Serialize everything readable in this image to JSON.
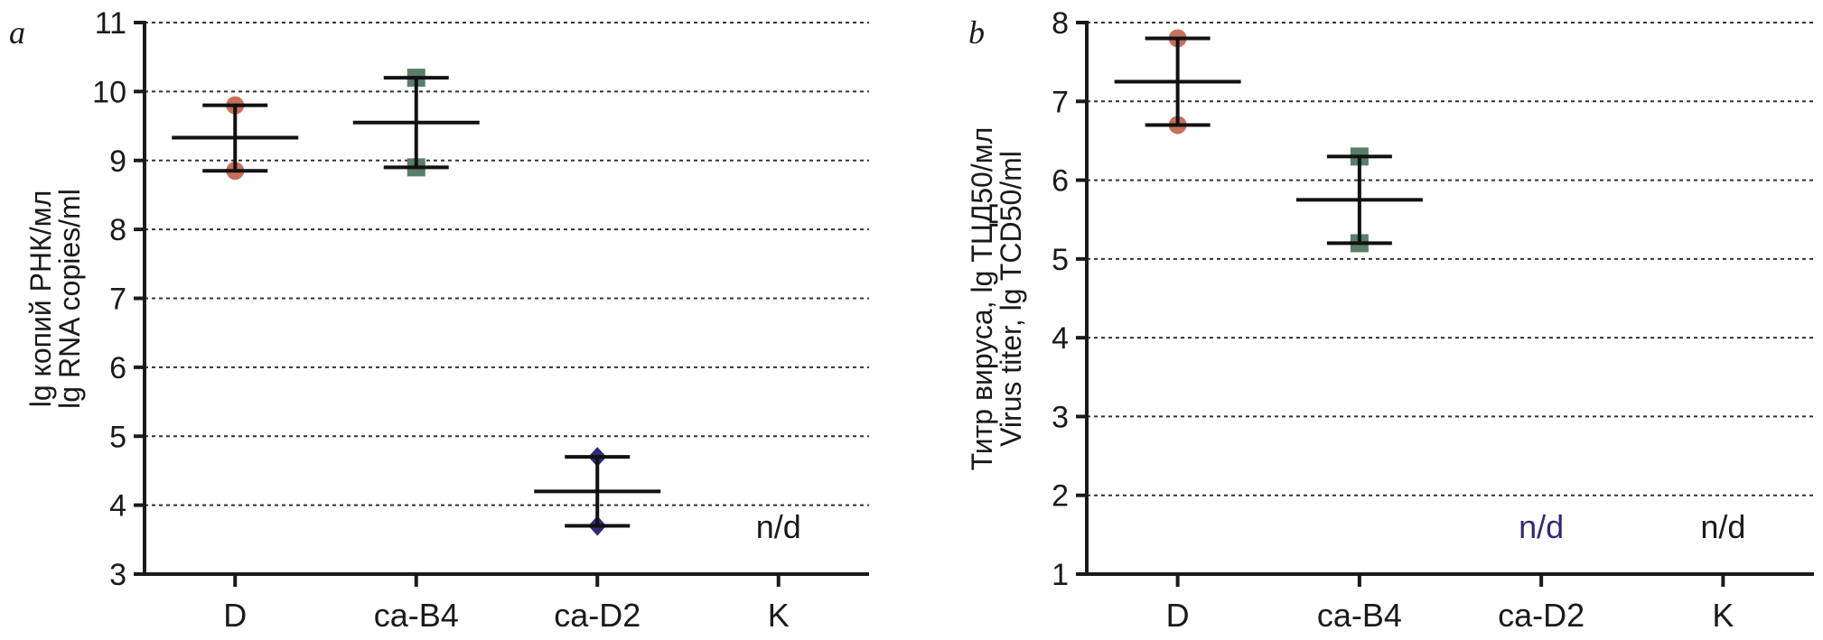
{
  "chart_data": [
    {
      "panel": "a",
      "type": "scatter",
      "ylabel_lines": [
        "lg копий РНК/мл",
        "lg RNA copies/ml"
      ],
      "ylim": [
        3,
        11
      ],
      "yticks": [
        3,
        4,
        5,
        6,
        7,
        8,
        9,
        10,
        11
      ],
      "grid": true,
      "categories": [
        "D",
        "ca-B4",
        "ca-D2",
        "K"
      ],
      "points": [
        {
          "category": "D",
          "values": [
            9.8,
            8.85
          ],
          "mean": 9.33,
          "upper": 9.8,
          "lower": 8.85,
          "color": "#c8705a",
          "marker": "circle"
        },
        {
          "category": "ca-B4",
          "values": [
            10.2,
            8.9
          ],
          "mean": 9.55,
          "upper": 10.2,
          "lower": 8.9,
          "color": "#5b7d6b",
          "marker": "square"
        },
        {
          "category": "ca-D2",
          "values": [
            4.7,
            3.7
          ],
          "mean": 4.2,
          "upper": 4.7,
          "lower": 3.7,
          "color": "#2e2a78",
          "marker": "diamond"
        }
      ],
      "annotations": [
        {
          "category": "K",
          "text": "n/d",
          "color": "#1a1a1a"
        }
      ]
    },
    {
      "panel": "b",
      "type": "scatter",
      "ylabel_lines": [
        "Титр вируса, lg ТЦД50/мл",
        "Virus titer, lg TCD50/ml"
      ],
      "ylim": [
        1,
        8
      ],
      "yticks": [
        1,
        2,
        3,
        4,
        5,
        6,
        7,
        8
      ],
      "grid": true,
      "categories": [
        "D",
        "ca-B4",
        "ca-D2",
        "K"
      ],
      "points": [
        {
          "category": "D",
          "values": [
            7.8,
            6.7
          ],
          "mean": 7.25,
          "upper": 7.8,
          "lower": 6.7,
          "color": "#c8705a",
          "marker": "circle"
        },
        {
          "category": "ca-B4",
          "values": [
            6.3,
            5.2
          ],
          "mean": 5.75,
          "upper": 6.3,
          "lower": 5.2,
          "color": "#5b7d6b",
          "marker": "square"
        }
      ],
      "annotations": [
        {
          "category": "ca-D2",
          "text": "n/d",
          "color": "#2e2a78"
        },
        {
          "category": "K",
          "text": "n/d",
          "color": "#1a1a1a"
        }
      ]
    }
  ]
}
